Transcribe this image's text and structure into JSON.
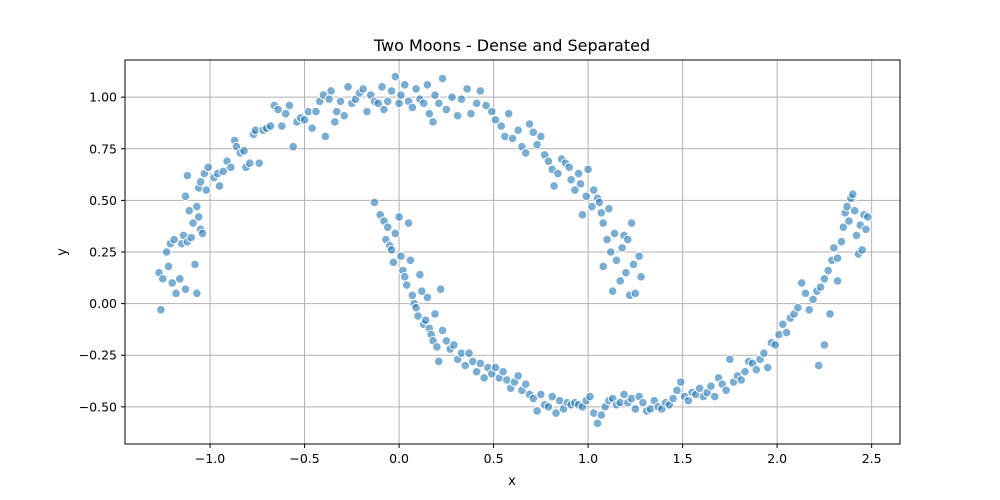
{
  "chart_data": {
    "type": "scatter",
    "title": "Two Moons - Dense and Separated",
    "xlabel": "x",
    "ylabel": "y",
    "xlim": [
      -1.45,
      2.65
    ],
    "ylim": [
      -0.68,
      1.18
    ],
    "xticks": [
      -1.0,
      -0.5,
      0.0,
      0.5,
      1.0,
      1.5,
      2.0,
      2.5
    ],
    "xtick_labels": [
      "−1.0",
      "−0.5",
      "0.0",
      "0.5",
      "1.0",
      "1.5",
      "2.0",
      "2.5"
    ],
    "yticks": [
      -0.5,
      -0.25,
      0.0,
      0.25,
      0.5,
      0.75,
      1.0
    ],
    "ytick_labels": [
      "−0.50",
      "−0.25",
      "0.00",
      "0.25",
      "0.50",
      "0.75",
      "1.00"
    ],
    "grid": true,
    "marker_color": "#1f77b4",
    "series": [
      {
        "points": [
          [
            -1.27,
            0.15
          ],
          [
            -1.25,
            0.12
          ],
          [
            -1.26,
            -0.03
          ],
          [
            -1.23,
            0.25
          ],
          [
            -1.22,
            0.18
          ],
          [
            -1.21,
            0.29
          ],
          [
            -1.19,
            0.31
          ],
          [
            -1.2,
            0.1
          ],
          [
            -1.18,
            0.05
          ],
          [
            -1.16,
            0.12
          ],
          [
            -1.15,
            0.29
          ],
          [
            -1.14,
            0.33
          ],
          [
            -1.13,
            0.07
          ],
          [
            -1.12,
            0.3
          ],
          [
            -1.11,
            0.45
          ],
          [
            -1.13,
            0.52
          ],
          [
            -1.12,
            0.62
          ],
          [
            -1.1,
            0.32
          ],
          [
            -1.09,
            0.39
          ],
          [
            -1.08,
            0.19
          ],
          [
            -1.07,
            0.05
          ],
          [
            -1.06,
            0.42
          ],
          [
            -1.05,
            0.36
          ],
          [
            -1.07,
            0.47
          ],
          [
            -1.06,
            0.56
          ],
          [
            -1.05,
            0.59
          ],
          [
            -1.04,
            0.34
          ],
          [
            -1.03,
            0.63
          ],
          [
            -1.02,
            0.55
          ],
          [
            -1.01,
            0.66
          ],
          [
            -0.98,
            0.61
          ],
          [
            -0.96,
            0.63
          ],
          [
            -0.95,
            0.57
          ],
          [
            -0.93,
            0.64
          ],
          [
            -0.91,
            0.69
          ],
          [
            -0.89,
            0.66
          ],
          [
            -0.87,
            0.79
          ],
          [
            -0.86,
            0.76
          ],
          [
            -0.84,
            0.73
          ],
          [
            -0.82,
            0.74
          ],
          [
            -0.81,
            0.66
          ],
          [
            -0.79,
            0.68
          ],
          [
            -0.77,
            0.82
          ],
          [
            -0.76,
            0.84
          ],
          [
            -0.74,
            0.68
          ],
          [
            -0.72,
            0.84
          ],
          [
            -0.7,
            0.85
          ],
          [
            -0.68,
            0.86
          ],
          [
            -0.66,
            0.96
          ],
          [
            -0.64,
            0.94
          ],
          [
            -0.62,
            0.86
          ],
          [
            -0.6,
            0.92
          ],
          [
            -0.58,
            0.96
          ],
          [
            -0.56,
            0.76
          ],
          [
            -0.54,
            0.88
          ],
          [
            -0.52,
            0.9
          ],
          [
            -0.5,
            0.89
          ],
          [
            -0.48,
            0.93
          ],
          [
            -0.46,
            0.85
          ],
          [
            -0.44,
            0.93
          ],
          [
            -0.42,
            0.98
          ],
          [
            -0.4,
            1.01
          ],
          [
            -0.39,
            0.81
          ],
          [
            -0.37,
            0.99
          ],
          [
            -0.36,
            1.03
          ],
          [
            -0.34,
            0.88
          ],
          [
            -0.33,
            0.93
          ],
          [
            -0.31,
            0.98
          ],
          [
            -0.29,
            0.91
          ],
          [
            -0.27,
            1.05
          ],
          [
            -0.25,
            0.97
          ],
          [
            -0.23,
            0.99
          ],
          [
            -0.21,
            1.02
          ],
          [
            -0.19,
            1.04
          ],
          [
            -0.17,
            0.93
          ],
          [
            -0.15,
            1.01
          ],
          [
            -0.13,
            0.98
          ],
          [
            -0.11,
            0.97
          ],
          [
            -0.09,
            1.05
          ],
          [
            -0.08,
            0.94
          ],
          [
            -0.06,
            0.98
          ],
          [
            -0.04,
            1.03
          ],
          [
            -0.02,
            1.1
          ],
          [
            0.0,
            0.97
          ],
          [
            0.01,
            1.01
          ],
          [
            0.03,
            1.06
          ],
          [
            0.05,
            0.98
          ],
          [
            0.07,
            0.95
          ],
          [
            0.09,
            1.04
          ],
          [
            0.11,
            0.99
          ],
          [
            0.13,
            0.97
          ],
          [
            0.15,
            1.06
          ],
          [
            0.16,
            0.92
          ],
          [
            0.18,
            0.88
          ],
          [
            0.19,
            1.01
          ],
          [
            0.21,
            0.97
          ],
          [
            0.23,
            1.09
          ],
          [
            0.25,
            0.94
          ],
          [
            0.28,
            1.0
          ],
          [
            0.31,
            0.91
          ],
          [
            0.33,
            0.99
          ],
          [
            0.36,
            1.04
          ],
          [
            0.38,
            0.92
          ],
          [
            0.41,
            0.97
          ],
          [
            0.43,
            1.03
          ],
          [
            0.46,
            0.96
          ],
          [
            0.49,
            0.93
          ],
          [
            0.51,
            0.89
          ],
          [
            0.54,
            0.86
          ],
          [
            0.56,
            0.81
          ],
          [
            0.58,
            0.92
          ],
          [
            0.6,
            0.8
          ],
          [
            0.63,
            0.84
          ],
          [
            0.65,
            0.76
          ],
          [
            0.67,
            0.73
          ],
          [
            0.69,
            0.87
          ],
          [
            0.71,
            0.83
          ],
          [
            0.73,
            0.77
          ],
          [
            0.75,
            0.81
          ],
          [
            0.77,
            0.72
          ],
          [
            0.79,
            0.69
          ],
          [
            0.81,
            0.65
          ],
          [
            0.82,
            0.57
          ],
          [
            0.84,
            0.63
          ],
          [
            0.86,
            0.7
          ],
          [
            0.88,
            0.68
          ],
          [
            0.9,
            0.66
          ],
          [
            0.91,
            0.6
          ],
          [
            0.93,
            0.55
          ],
          [
            0.95,
            0.63
          ],
          [
            0.96,
            0.58
          ],
          [
            0.97,
            0.43
          ],
          [
            0.99,
            0.52
          ],
          [
            1.0,
            0.65
          ],
          [
            1.02,
            0.47
          ],
          [
            1.03,
            0.55
          ],
          [
            1.05,
            0.51
          ],
          [
            1.06,
            0.49
          ],
          [
            1.07,
            0.44
          ],
          [
            1.08,
            0.39
          ],
          [
            1.1,
            0.31
          ],
          [
            1.11,
            0.46
          ],
          [
            1.12,
            0.25
          ],
          [
            1.13,
            0.06
          ],
          [
            1.14,
            0.34
          ],
          [
            1.15,
            0.21
          ],
          [
            1.17,
            0.11
          ],
          [
            1.18,
            0.27
          ],
          [
            1.2,
            0.15
          ],
          [
            1.22,
            0.04
          ],
          [
            1.23,
            0.39
          ],
          [
            1.24,
            0.19
          ],
          [
            1.25,
            0.05
          ],
          [
            1.27,
            0.23
          ],
          [
            1.28,
            0.13
          ],
          [
            1.19,
            0.33
          ],
          [
            1.21,
            0.31
          ],
          [
            1.08,
            0.18
          ],
          [
            -0.13,
            0.49
          ],
          [
            -0.1,
            0.43
          ],
          [
            -0.08,
            0.4
          ],
          [
            -0.06,
            0.37
          ],
          [
            -0.07,
            0.31
          ],
          [
            -0.05,
            0.28
          ],
          [
            -0.04,
            0.26
          ],
          [
            -0.03,
            0.2
          ],
          [
            -0.02,
            0.34
          ],
          [
            0.0,
            0.42
          ],
          [
            0.01,
            0.23
          ],
          [
            0.02,
            0.16
          ],
          [
            0.03,
            0.13
          ],
          [
            0.04,
            0.09
          ],
          [
            0.05,
            0.39
          ],
          [
            0.06,
            0.21
          ],
          [
            0.07,
            0.04
          ],
          [
            0.08,
            0.0
          ],
          [
            0.09,
            -0.02
          ],
          [
            0.1,
            -0.06
          ],
          [
            0.11,
            0.14
          ],
          [
            0.12,
            0.06
          ],
          [
            0.13,
            -0.1
          ],
          [
            0.14,
            -0.08
          ],
          [
            0.15,
            0.03
          ],
          [
            0.16,
            -0.12
          ],
          [
            0.17,
            -0.15
          ],
          [
            0.18,
            -0.18
          ],
          [
            0.19,
            -0.05
          ],
          [
            0.2,
            -0.21
          ],
          [
            0.21,
            -0.28
          ],
          [
            0.22,
            0.07
          ],
          [
            0.23,
            -0.13
          ],
          [
            0.25,
            -0.18
          ],
          [
            0.27,
            -0.22
          ],
          [
            0.29,
            -0.2
          ],
          [
            0.31,
            -0.27
          ],
          [
            0.33,
            -0.24
          ],
          [
            0.35,
            -0.3
          ],
          [
            0.37,
            -0.24
          ],
          [
            0.39,
            -0.28
          ],
          [
            0.41,
            -0.33
          ],
          [
            0.43,
            -0.29
          ],
          [
            0.45,
            -0.36
          ],
          [
            0.47,
            -0.31
          ],
          [
            0.49,
            -0.34
          ],
          [
            0.51,
            -0.31
          ],
          [
            0.53,
            -0.36
          ],
          [
            0.55,
            -0.33
          ],
          [
            0.57,
            -0.37
          ],
          [
            0.59,
            -0.41
          ],
          [
            0.61,
            -0.38
          ],
          [
            0.63,
            -0.35
          ],
          [
            0.65,
            -0.42
          ],
          [
            0.67,
            -0.39
          ],
          [
            0.69,
            -0.44
          ],
          [
            0.71,
            -0.46
          ],
          [
            0.73,
            -0.52
          ],
          [
            0.75,
            -0.44
          ],
          [
            0.77,
            -0.49
          ],
          [
            0.79,
            -0.5
          ],
          [
            0.81,
            -0.45
          ],
          [
            0.83,
            -0.53
          ],
          [
            0.85,
            -0.47
          ],
          [
            0.87,
            -0.51
          ],
          [
            0.89,
            -0.48
          ],
          [
            0.91,
            -0.49
          ],
          [
            0.93,
            -0.48
          ],
          [
            0.95,
            -0.49
          ],
          [
            0.97,
            -0.5
          ],
          [
            0.99,
            -0.47
          ],
          [
            1.01,
            -0.45
          ],
          [
            1.03,
            -0.53
          ],
          [
            1.05,
            -0.58
          ],
          [
            1.07,
            -0.54
          ],
          [
            1.09,
            -0.5
          ],
          [
            1.11,
            -0.47
          ],
          [
            1.13,
            -0.46
          ],
          [
            1.15,
            -0.49
          ],
          [
            1.17,
            -0.48
          ],
          [
            1.19,
            -0.44
          ],
          [
            1.21,
            -0.48
          ],
          [
            1.23,
            -0.46
          ],
          [
            1.25,
            -0.51
          ],
          [
            1.27,
            -0.45
          ],
          [
            1.29,
            -0.48
          ],
          [
            1.31,
            -0.52
          ],
          [
            1.33,
            -0.51
          ],
          [
            1.35,
            -0.47
          ],
          [
            1.37,
            -0.5
          ],
          [
            1.39,
            -0.51
          ],
          [
            1.41,
            -0.48
          ],
          [
            1.43,
            -0.49
          ],
          [
            1.45,
            -0.46
          ],
          [
            1.47,
            -0.42
          ],
          [
            1.49,
            -0.38
          ],
          [
            1.51,
            -0.45
          ],
          [
            1.53,
            -0.47
          ],
          [
            1.55,
            -0.43
          ],
          [
            1.57,
            -0.44
          ],
          [
            1.59,
            -0.41
          ],
          [
            1.61,
            -0.45
          ],
          [
            1.63,
            -0.43
          ],
          [
            1.65,
            -0.4
          ],
          [
            1.67,
            -0.45
          ],
          [
            1.69,
            -0.36
          ],
          [
            1.71,
            -0.39
          ],
          [
            1.73,
            -0.42
          ],
          [
            1.75,
            -0.27
          ],
          [
            1.77,
            -0.38
          ],
          [
            1.79,
            -0.35
          ],
          [
            1.81,
            -0.37
          ],
          [
            1.83,
            -0.33
          ],
          [
            1.85,
            -0.28
          ],
          [
            1.87,
            -0.29
          ],
          [
            1.89,
            -0.32
          ],
          [
            1.91,
            -0.27
          ],
          [
            1.93,
            -0.24
          ],
          [
            1.95,
            -0.31
          ],
          [
            1.97,
            -0.19
          ],
          [
            1.99,
            -0.2
          ],
          [
            2.01,
            -0.15
          ],
          [
            2.03,
            -0.1
          ],
          [
            2.05,
            -0.14
          ],
          [
            2.07,
            -0.07
          ],
          [
            2.09,
            -0.05
          ],
          [
            2.11,
            -0.02
          ],
          [
            2.13,
            0.1
          ],
          [
            2.15,
            0.05
          ],
          [
            2.17,
            -0.03
          ],
          [
            2.19,
            0.02
          ],
          [
            2.21,
            0.06
          ],
          [
            2.22,
            -0.3
          ],
          [
            2.23,
            0.08
          ],
          [
            2.25,
            0.12
          ],
          [
            2.27,
            0.16
          ],
          [
            2.29,
            0.21
          ],
          [
            2.3,
            0.27
          ],
          [
            2.32,
            0.22
          ],
          [
            2.34,
            0.3
          ],
          [
            2.35,
            0.37
          ],
          [
            2.36,
            0.44
          ],
          [
            2.37,
            0.47
          ],
          [
            2.38,
            0.4
          ],
          [
            2.39,
            0.51
          ],
          [
            2.4,
            0.53
          ],
          [
            2.41,
            0.45
          ],
          [
            2.42,
            0.33
          ],
          [
            2.43,
            0.24
          ],
          [
            2.44,
            0.38
          ],
          [
            2.45,
            0.26
          ],
          [
            2.46,
            0.43
          ],
          [
            2.47,
            0.36
          ],
          [
            2.48,
            0.42
          ],
          [
            2.32,
            0.11
          ],
          [
            2.28,
            -0.05
          ],
          [
            2.25,
            -0.2
          ]
        ]
      }
    ]
  }
}
